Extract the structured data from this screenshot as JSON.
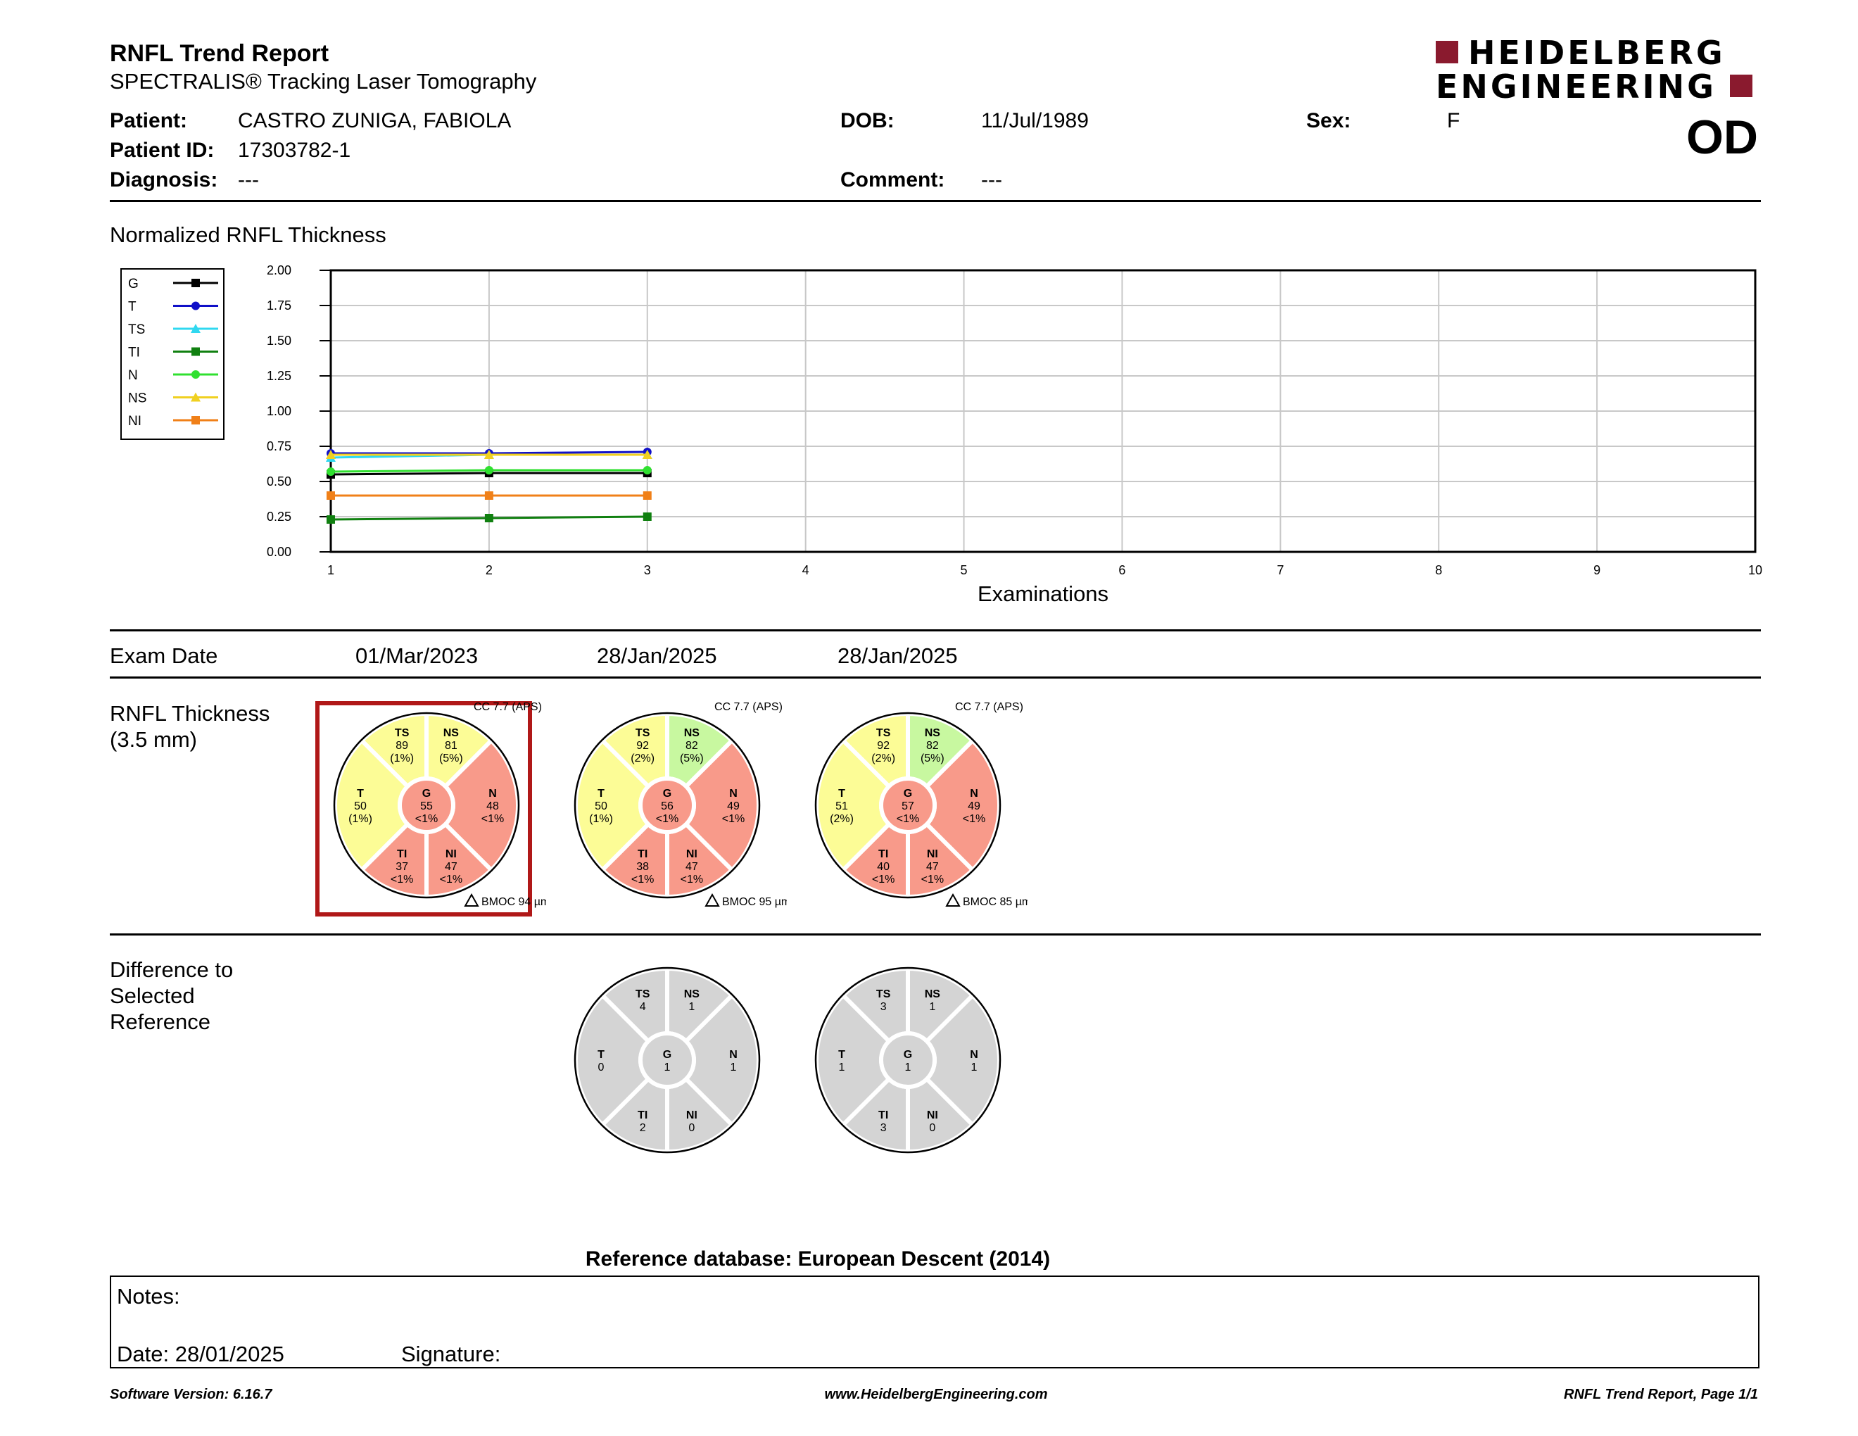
{
  "header": {
    "title": "RNFL Trend Report",
    "subtitle": "SPECTRALIS® Tracking Laser Tomography",
    "logo_line1": "HEIDELBERG",
    "logo_line2": "ENGINEERING",
    "eye": "OD"
  },
  "patient": {
    "patient_label": "Patient:",
    "patient_value": "CASTRO ZUNIGA, FABIOLA",
    "id_label": "Patient ID:",
    "id_value": "17303782-1",
    "diagnosis_label": "Diagnosis:",
    "diagnosis_value": "---",
    "dob_label": "DOB:",
    "dob_value": "11/Jul/1989",
    "comment_label": "Comment:",
    "comment_value": "---",
    "sex_label": "Sex:",
    "sex_value": "F"
  },
  "chart_section_title": "Normalized RNFL Thickness",
  "chart_data": {
    "type": "line",
    "xlabel": "Examinations",
    "ylabel": "",
    "x": [
      1,
      2,
      3
    ],
    "xlim": [
      1,
      10
    ],
    "ylim": [
      0,
      2
    ],
    "x_ticks": [
      "1",
      "2",
      "3",
      "4",
      "5",
      "6",
      "7",
      "8",
      "9",
      "10"
    ],
    "y_ticks": [
      "0.00",
      "0.25",
      "0.50",
      "0.75",
      "1.00",
      "1.25",
      "1.50",
      "1.75",
      "2.00"
    ],
    "grid": true,
    "legend_placement": "left",
    "series": [
      {
        "name": "G",
        "color": "#000000",
        "marker": "square",
        "values": [
          0.55,
          0.56,
          0.56
        ]
      },
      {
        "name": "T",
        "color": "#1010c8",
        "marker": "circle",
        "values": [
          0.7,
          0.7,
          0.71
        ]
      },
      {
        "name": "TS",
        "color": "#30d8f0",
        "marker": "triangle",
        "values": [
          0.67,
          0.69,
          0.69
        ]
      },
      {
        "name": "TI",
        "color": "#108010",
        "marker": "square",
        "values": [
          0.23,
          0.24,
          0.25
        ]
      },
      {
        "name": "N",
        "color": "#30e030",
        "marker": "circle",
        "values": [
          0.57,
          0.58,
          0.58
        ]
      },
      {
        "name": "NS",
        "color": "#f0d020",
        "marker": "triangle",
        "values": [
          0.69,
          0.69,
          0.69
        ]
      },
      {
        "name": "NI",
        "color": "#f08018",
        "marker": "square",
        "values": [
          0.4,
          0.4,
          0.4
        ]
      }
    ]
  },
  "exam_date_label": "Exam Date",
  "exam_dates": [
    "01/Mar/2023",
    "28/Jan/2025",
    "28/Jan/2025"
  ],
  "thickness_label_line1": "RNFL Thickness",
  "thickness_label_line2": "(3.5 mm)",
  "diff_label_line1": "Difference to",
  "diff_label_line2": "Selected",
  "diff_label_line3": "Reference",
  "colors": {
    "within_normal": "#fcfc96",
    "borderline": "#fcfc96",
    "outside_normal": "#f89a8a",
    "above_normal": "#c8f8a0",
    "difference": "#d4d4d4",
    "selected_reference_border": "#b01818"
  },
  "thickness_circles": [
    {
      "cc": "CC 7.7 (APS)",
      "bmo": "BMOC 94 µm",
      "selected": true,
      "G": {
        "value": "55",
        "pct": "<1%",
        "class": "outside_normal"
      },
      "T": {
        "value": "50",
        "pct": "(1%)",
        "class": "borderline"
      },
      "TS": {
        "value": "89",
        "pct": "(1%)",
        "class": "borderline"
      },
      "NS": {
        "value": "81",
        "pct": "(5%)",
        "class": "borderline"
      },
      "N": {
        "value": "48",
        "pct": "<1%",
        "class": "outside_normal"
      },
      "NI": {
        "value": "47",
        "pct": "<1%",
        "class": "outside_normal"
      },
      "TI": {
        "value": "37",
        "pct": "<1%",
        "class": "outside_normal"
      }
    },
    {
      "cc": "CC 7.7 (APS)",
      "bmo": "BMOC 95 µm",
      "selected": false,
      "G": {
        "value": "56",
        "pct": "<1%",
        "class": "outside_normal"
      },
      "T": {
        "value": "50",
        "pct": "(1%)",
        "class": "borderline"
      },
      "TS": {
        "value": "92",
        "pct": "(2%)",
        "class": "borderline"
      },
      "NS": {
        "value": "82",
        "pct": "(5%)",
        "class": "above_normal"
      },
      "N": {
        "value": "49",
        "pct": "<1%",
        "class": "outside_normal"
      },
      "NI": {
        "value": "47",
        "pct": "<1%",
        "class": "outside_normal"
      },
      "TI": {
        "value": "38",
        "pct": "<1%",
        "class": "outside_normal"
      }
    },
    {
      "cc": "CC 7.7 (APS)",
      "bmo": "BMOC 85 µm",
      "selected": false,
      "G": {
        "value": "57",
        "pct": "<1%",
        "class": "outside_normal"
      },
      "T": {
        "value": "51",
        "pct": "(2%)",
        "class": "borderline"
      },
      "TS": {
        "value": "92",
        "pct": "(2%)",
        "class": "borderline"
      },
      "NS": {
        "value": "82",
        "pct": "(5%)",
        "class": "above_normal"
      },
      "N": {
        "value": "49",
        "pct": "<1%",
        "class": "outside_normal"
      },
      "NI": {
        "value": "47",
        "pct": "<1%",
        "class": "outside_normal"
      },
      "TI": {
        "value": "40",
        "pct": "<1%",
        "class": "outside_normal"
      }
    }
  ],
  "difference_circles": [
    {
      "G": "1",
      "T": "0",
      "TS": "4",
      "NS": "1",
      "N": "1",
      "NI": "0",
      "TI": "2"
    },
    {
      "G": "1",
      "T": "1",
      "TS": "3",
      "NS": "1",
      "N": "1",
      "NI": "0",
      "TI": "3"
    }
  ],
  "reference_db": "Reference database: European Descent (2014)",
  "notes": {
    "notes_label": "Notes:",
    "date_label": "Date: 28/01/2025",
    "signature_label": "Signature:"
  },
  "footer": {
    "software": "Software Version: 6.16.7",
    "website": "www.HeidelbergEngineering.com",
    "page": "RNFL Trend Report, Page 1/1"
  }
}
